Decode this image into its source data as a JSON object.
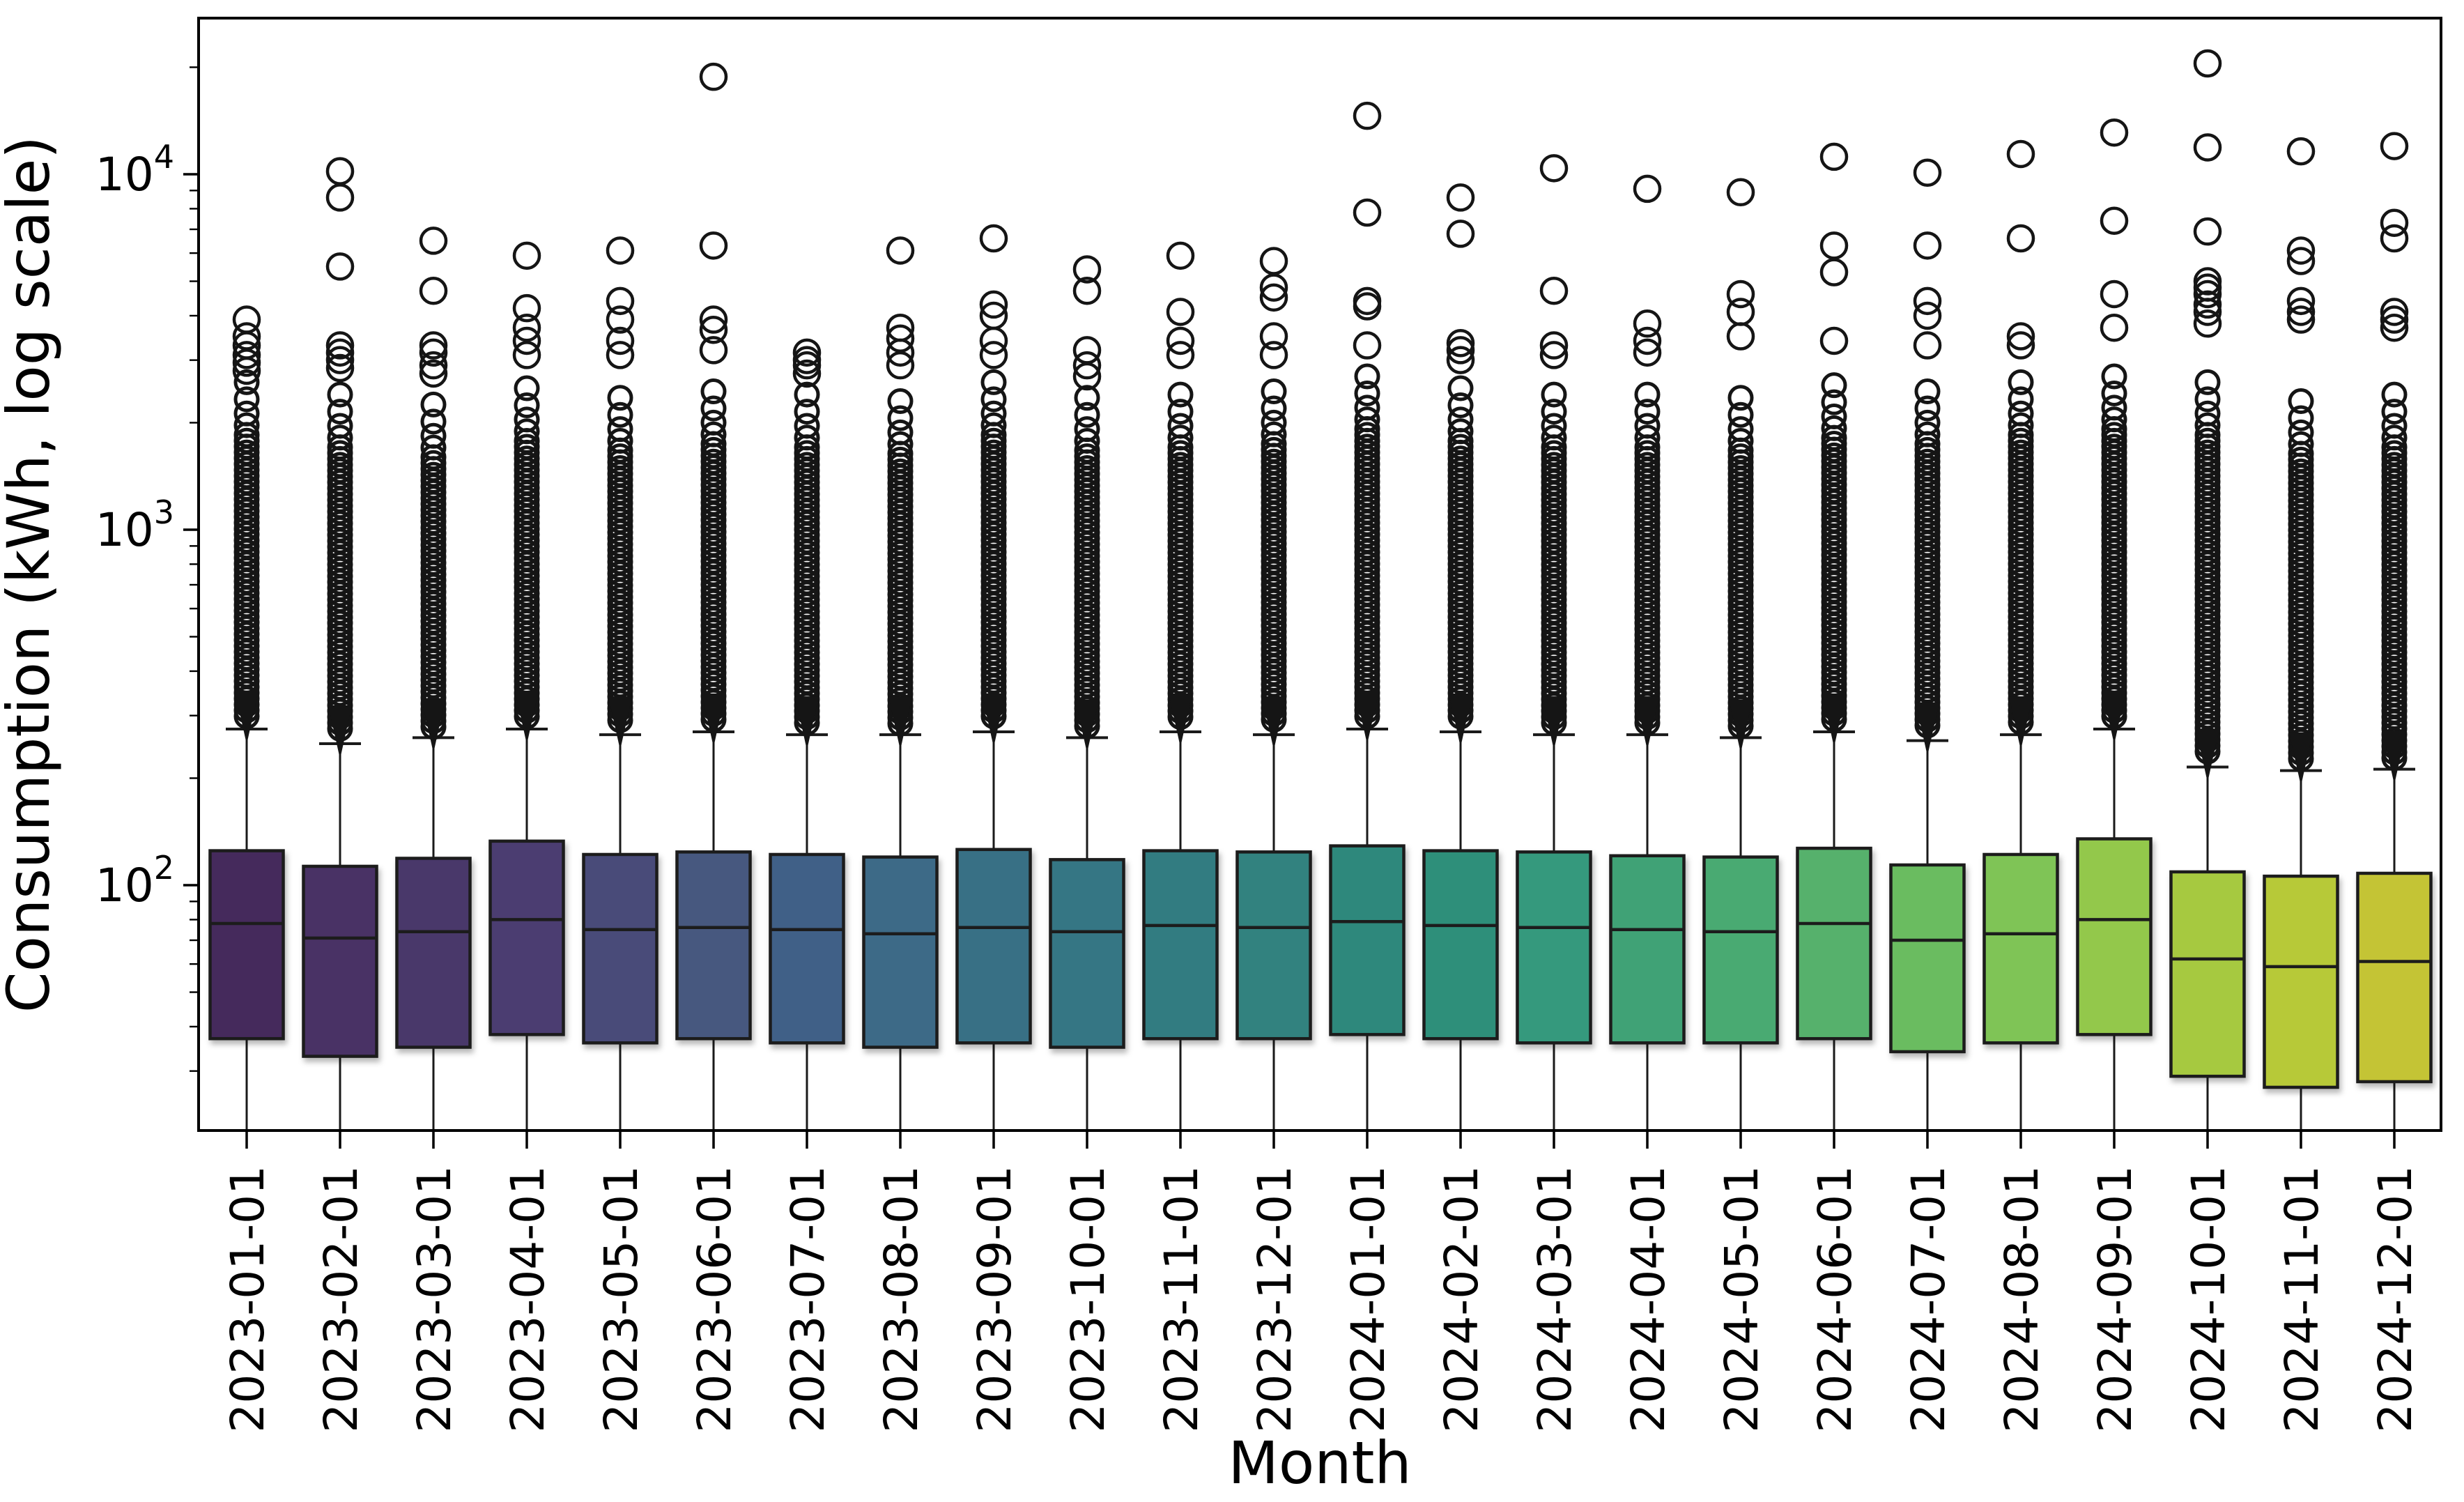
{
  "figure": {
    "background": "#ffffff",
    "box_edge_color": "#1c1c1c",
    "flier_color": "#151515",
    "whisker_color": "#1a1a1a",
    "spine_color": "#000000"
  },
  "chart_data": {
    "type": "box",
    "title": "",
    "xlabel": "Month",
    "ylabel": "Consumption (kWh, log scale)",
    "yscale": "log",
    "ylim": [
      20,
      27500
    ],
    "grid": false,
    "legend": false,
    "y_major_ticks": [
      {
        "base": "10",
        "exp": "2",
        "value": 100
      },
      {
        "base": "10",
        "exp": "3",
        "value": 1000
      },
      {
        "base": "10",
        "exp": "4",
        "value": 10000
      }
    ],
    "categories": [
      "2023-01-01",
      "2023-02-01",
      "2023-03-01",
      "2023-04-01",
      "2023-05-01",
      "2023-06-01",
      "2023-07-01",
      "2023-08-01",
      "2023-09-01",
      "2023-10-01",
      "2023-11-01",
      "2023-12-01",
      "2024-01-01",
      "2024-02-01",
      "2024-03-01",
      "2024-04-01",
      "2024-05-01",
      "2024-06-01",
      "2024-07-01",
      "2024-08-01",
      "2024-09-01",
      "2024-10-01",
      "2024-11-01",
      "2024-12-01"
    ],
    "boxes": [
      {
        "month": "2023-01-01",
        "color": "#452a5b",
        "q1": 37,
        "median": 78,
        "q3": 125,
        "whisker_low": 20,
        "whisker_high": 275,
        "flier_band_top": 2600,
        "outliers": [
          3900,
          3500,
          3300,
          3100,
          2950,
          2800
        ]
      },
      {
        "month": "2023-02-01",
        "color": "#483065",
        "q1": 33,
        "median": 71,
        "q3": 113,
        "whisker_low": 20,
        "whisker_high": 250,
        "flier_band_top": 2400,
        "outliers": [
          10200,
          8600,
          5500,
          3300,
          3150,
          3000,
          2850
        ]
      },
      {
        "month": "2023-03-01",
        "color": "#4a376b",
        "q1": 35,
        "median": 74,
        "q3": 119,
        "whisker_low": 20,
        "whisker_high": 260,
        "flier_band_top": 2250,
        "outliers": [
          6500,
          4700,
          3300,
          3150,
          2900,
          2750
        ]
      },
      {
        "month": "2023-04-01",
        "color": "#4b3e71",
        "q1": 38,
        "median": 80,
        "q3": 133,
        "whisker_low": 20,
        "whisker_high": 275,
        "flier_band_top": 2500,
        "outliers": [
          5900,
          4200,
          3700,
          3400,
          3100
        ]
      },
      {
        "month": "2023-05-01",
        "color": "#494b79",
        "q1": 36,
        "median": 75,
        "q3": 122,
        "whisker_low": 20,
        "whisker_high": 265,
        "flier_band_top": 2350,
        "outliers": [
          6100,
          4400,
          3900,
          3400,
          3100
        ]
      },
      {
        "month": "2023-06-01",
        "color": "#46597f",
        "q1": 37,
        "median": 76,
        "q3": 124,
        "whisker_low": 20,
        "whisker_high": 270,
        "flier_band_top": 2450,
        "outliers": [
          18800,
          6300,
          3900,
          3650,
          3200
        ]
      },
      {
        "month": "2023-07-01",
        "color": "#416187",
        "q1": 36,
        "median": 75,
        "q3": 122,
        "whisker_low": 20,
        "whisker_high": 265,
        "flier_band_top": 2400,
        "outliers": [
          3150,
          3000,
          2900,
          2750
        ]
      },
      {
        "month": "2023-08-01",
        "color": "#3c6a87",
        "q1": 35,
        "median": 73,
        "q3": 120,
        "whisker_low": 20,
        "whisker_high": 265,
        "flier_band_top": 2300,
        "outliers": [
          6100,
          3700,
          3450,
          3150,
          2900
        ]
      },
      {
        "month": "2023-09-01",
        "color": "#397085",
        "q1": 36,
        "median": 76,
        "q3": 126,
        "whisker_low": 20,
        "whisker_high": 270,
        "flier_band_top": 2600,
        "outliers": [
          6600,
          4300,
          4000,
          3400,
          3100
        ]
      },
      {
        "month": "2023-10-01",
        "color": "#357684",
        "q1": 35,
        "median": 74,
        "q3": 118,
        "whisker_low": 20,
        "whisker_high": 260,
        "flier_band_top": 2350,
        "outliers": [
          5400,
          4700,
          3200,
          2900,
          2700
        ]
      },
      {
        "month": "2023-11-01",
        "color": "#337c81",
        "q1": 37,
        "median": 77,
        "q3": 125,
        "whisker_low": 20,
        "whisker_high": 270,
        "flier_band_top": 2400,
        "outliers": [
          5900,
          4100,
          3400,
          3100
        ]
      },
      {
        "month": "2023-12-01",
        "color": "#30827f",
        "q1": 37,
        "median": 76,
        "q3": 124,
        "whisker_low": 20,
        "whisker_high": 265,
        "flier_band_top": 2450,
        "outliers": [
          5700,
          4800,
          4500,
          3500,
          3100
        ]
      },
      {
        "month": "2024-01-01",
        "color": "#2e887b",
        "q1": 38,
        "median": 79,
        "q3": 129,
        "whisker_low": 20,
        "whisker_high": 275,
        "flier_band_top": 2700,
        "outliers": [
          14600,
          7800,
          4400,
          4250,
          3300
        ]
      },
      {
        "month": "2024-02-01",
        "color": "#2f8f7a",
        "q1": 37,
        "median": 77,
        "q3": 125,
        "whisker_low": 20,
        "whisker_high": 270,
        "flier_band_top": 2500,
        "outliers": [
          8600,
          6800,
          3350,
          3200,
          3000
        ]
      },
      {
        "month": "2024-03-01",
        "color": "#34997d",
        "q1": 36,
        "median": 76,
        "q3": 124,
        "whisker_low": 20,
        "whisker_high": 265,
        "flier_band_top": 2400,
        "outliers": [
          10400,
          4700,
          3300,
          3100
        ]
      },
      {
        "month": "2024-04-01",
        "color": "#3fa276",
        "q1": 36,
        "median": 75,
        "q3": 121,
        "whisker_low": 20,
        "whisker_high": 265,
        "flier_band_top": 2400,
        "outliers": [
          9100,
          3800,
          3400,
          3150
        ]
      },
      {
        "month": "2024-05-01",
        "color": "#4aaa72",
        "q1": 36,
        "median": 74,
        "q3": 120,
        "whisker_low": 20,
        "whisker_high": 260,
        "flier_band_top": 2350,
        "outliers": [
          8900,
          4600,
          4100,
          3500
        ]
      },
      {
        "month": "2024-06-01",
        "color": "#56b16c",
        "q1": 37,
        "median": 78,
        "q3": 127,
        "whisker_low": 20,
        "whisker_high": 270,
        "flier_band_top": 2550,
        "outliers": [
          11200,
          6300,
          5300,
          3400
        ]
      },
      {
        "month": "2024-07-01",
        "color": "#6abc60",
        "q1": 34,
        "median": 70,
        "q3": 114,
        "whisker_low": 20,
        "whisker_high": 255,
        "flier_band_top": 2450,
        "outliers": [
          10100,
          6300,
          4400,
          4000,
          3300
        ]
      },
      {
        "month": "2024-08-01",
        "color": "#7fc456",
        "q1": 36,
        "median": 73,
        "q3": 122,
        "whisker_low": 20,
        "whisker_high": 265,
        "flier_band_top": 2600,
        "outliers": [
          11400,
          6600,
          3500,
          3300
        ]
      },
      {
        "month": "2024-09-01",
        "color": "#93c84b",
        "q1": 38,
        "median": 80,
        "q3": 135,
        "whisker_low": 20,
        "whisker_high": 275,
        "flier_band_top": 2700,
        "outliers": [
          13100,
          7400,
          4600,
          3700
        ]
      },
      {
        "month": "2024-10-01",
        "color": "#a6c941",
        "q1": 29,
        "median": 62,
        "q3": 109,
        "whisker_low": 20,
        "whisker_high": 215,
        "flier_band_top": 2600,
        "outliers": [
          20500,
          11900,
          6900,
          5000,
          4800,
          4600,
          4300,
          4100,
          3800
        ]
      },
      {
        "month": "2024-11-01",
        "color": "#b7c939",
        "q1": 27,
        "median": 59,
        "q3": 106,
        "whisker_low": 20,
        "whisker_high": 210,
        "flier_band_top": 2300,
        "outliers": [
          11600,
          6100,
          5700,
          4400,
          4100,
          3900
        ]
      },
      {
        "month": "2024-12-01",
        "color": "#c4c434",
        "q1": 28,
        "median": 61,
        "q3": 108,
        "whisker_low": 20,
        "whisker_high": 212,
        "flier_band_top": 2400,
        "outliers": [
          12000,
          7300,
          6600,
          4100,
          3900,
          3700
        ]
      }
    ]
  }
}
